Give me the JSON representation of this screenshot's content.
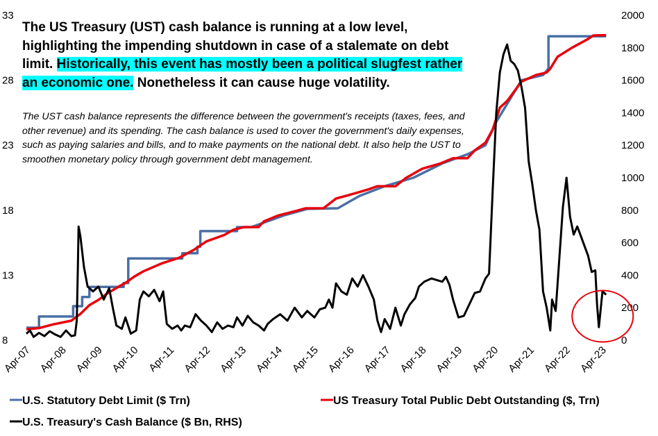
{
  "headline": {
    "part1": "The US Treasury (UST) cash balance is running at a low level, highlighting the impending shutdown in case of a stalemate on debt limit.",
    "highlight": "Historically, this event has mostly been a political slugfest rather an economic one.",
    "part2": "Nonetheless it can cause huge volatility."
  },
  "description": "The UST cash balance represents the difference between the government's receipts (taxes, fees, and other revenue) and its spending. The cash balance is used to cover the government's daily expenses, such as paying salaries and bills, and to make payments on the national debt. It also help the UST to smoothen monetary policy through government debt management.",
  "chart_data": {
    "type": "line",
    "x_tick_labels": [
      "Apr-07",
      "Apr-08",
      "Apr-09",
      "Apr-10",
      "Apr-11",
      "Apr-12",
      "Apr-13",
      "Apr-14",
      "Apr-15",
      "Apr-16",
      "Apr-17",
      "Apr-18",
      "Apr-19",
      "Apr-20",
      "Apr-21",
      "Apr-22",
      "Apr-23"
    ],
    "x_range": [
      2007.25,
      2023.5
    ],
    "y_left": {
      "range": [
        8,
        33
      ],
      "ticks": [
        8,
        13,
        18,
        23,
        28,
        33
      ],
      "unit": "$ Trn"
    },
    "y_right": {
      "range": [
        0,
        2000
      ],
      "ticks": [
        0,
        200,
        400,
        600,
        800,
        1000,
        1200,
        1400,
        1600,
        1800,
        2000
      ],
      "unit": "$ Bn"
    },
    "series": [
      {
        "name": "U.S. Statutory Debt Limit ($ Trn)",
        "color": "#4a6fa5",
        "axis": "left",
        "step": true,
        "points": [
          [
            2007.25,
            8.96
          ],
          [
            2007.6,
            8.96
          ],
          [
            2007.6,
            9.82
          ],
          [
            2008.55,
            9.82
          ],
          [
            2008.55,
            10.62
          ],
          [
            2008.8,
            10.62
          ],
          [
            2008.8,
            11.32
          ],
          [
            2009.0,
            11.32
          ],
          [
            2009.0,
            12.1
          ],
          [
            2009.95,
            12.1
          ],
          [
            2009.95,
            12.4
          ],
          [
            2010.08,
            12.4
          ],
          [
            2010.08,
            14.29
          ],
          [
            2011.58,
            14.29
          ],
          [
            2011.58,
            14.69
          ],
          [
            2012.0,
            14.69
          ],
          [
            2012.0,
            15.19
          ],
          [
            2012.08,
            15.19
          ],
          [
            2012.08,
            16.39
          ],
          [
            2013.1,
            16.39
          ],
          [
            2013.1,
            16.7
          ],
          [
            2013.5,
            16.7
          ],
          [
            2014.4,
            17.6
          ],
          [
            2015.05,
            18.1
          ],
          [
            2015.9,
            18.15
          ],
          [
            2016.5,
            19.1
          ],
          [
            2017.2,
            19.85
          ],
          [
            2018.0,
            20.5
          ],
          [
            2018.8,
            21.6
          ],
          [
            2019.2,
            22.0
          ],
          [
            2019.5,
            22.3
          ],
          [
            2020.0,
            23.0
          ],
          [
            2020.3,
            24.8
          ],
          [
            2021.0,
            28.0
          ],
          [
            2021.6,
            28.4
          ],
          [
            2021.75,
            28.9
          ],
          [
            2021.75,
            31.38
          ],
          [
            2023.35,
            31.38
          ]
        ]
      },
      {
        "name": "US Treasury Total Public Debt Outstanding ($, Trn)",
        "color": "#e8000b",
        "axis": "left",
        "points": [
          [
            2007.25,
            8.84
          ],
          [
            2007.6,
            8.93
          ],
          [
            2008.0,
            9.22
          ],
          [
            2008.5,
            9.5
          ],
          [
            2008.75,
            10.02
          ],
          [
            2009.0,
            10.7
          ],
          [
            2009.25,
            11.1
          ],
          [
            2009.5,
            11.6
          ],
          [
            2009.8,
            12.1
          ],
          [
            2010.0,
            12.4
          ],
          [
            2010.25,
            12.9
          ],
          [
            2010.5,
            13.3
          ],
          [
            2011.0,
            13.9
          ],
          [
            2011.5,
            14.35
          ],
          [
            2011.9,
            14.95
          ],
          [
            2012.25,
            15.6
          ],
          [
            2012.75,
            16.1
          ],
          [
            2013.0,
            16.5
          ],
          [
            2013.3,
            16.7
          ],
          [
            2013.7,
            16.7
          ],
          [
            2013.85,
            17.15
          ],
          [
            2014.25,
            17.6
          ],
          [
            2014.75,
            17.95
          ],
          [
            2015.0,
            18.15
          ],
          [
            2015.5,
            18.15
          ],
          [
            2015.85,
            18.9
          ],
          [
            2016.25,
            19.2
          ],
          [
            2016.75,
            19.6
          ],
          [
            2017.0,
            19.85
          ],
          [
            2017.5,
            19.85
          ],
          [
            2017.8,
            20.5
          ],
          [
            2018.25,
            21.2
          ],
          [
            2018.75,
            21.6
          ],
          [
            2019.1,
            22.0
          ],
          [
            2019.5,
            22.0
          ],
          [
            2019.7,
            22.6
          ],
          [
            2020.0,
            23.2
          ],
          [
            2020.2,
            24.2
          ],
          [
            2020.4,
            25.9
          ],
          [
            2020.6,
            26.4
          ],
          [
            2021.0,
            27.9
          ],
          [
            2021.4,
            28.4
          ],
          [
            2021.7,
            28.6
          ],
          [
            2021.8,
            28.9
          ],
          [
            2022.0,
            29.8
          ],
          [
            2022.4,
            30.5
          ],
          [
            2022.8,
            31.1
          ],
          [
            2023.0,
            31.45
          ],
          [
            2023.35,
            31.47
          ]
        ]
      },
      {
        "name": "U.S. Treasury's Cash Balance ($ Bn, RHS)",
        "color": "#000000",
        "axis": "right",
        "points": [
          [
            2007.25,
            40
          ],
          [
            2007.35,
            60
          ],
          [
            2007.45,
            20
          ],
          [
            2007.6,
            45
          ],
          [
            2007.75,
            25
          ],
          [
            2007.9,
            55
          ],
          [
            2008.05,
            35
          ],
          [
            2008.2,
            20
          ],
          [
            2008.35,
            60
          ],
          [
            2008.5,
            25
          ],
          [
            2008.6,
            30
          ],
          [
            2008.65,
            120
          ],
          [
            2008.68,
            450
          ],
          [
            2008.7,
            700
          ],
          [
            2008.75,
            640
          ],
          [
            2008.85,
            450
          ],
          [
            2008.95,
            330
          ],
          [
            2009.1,
            300
          ],
          [
            2009.25,
            330
          ],
          [
            2009.4,
            250
          ],
          [
            2009.55,
            320
          ],
          [
            2009.65,
            200
          ],
          [
            2009.75,
            90
          ],
          [
            2009.9,
            70
          ],
          [
            2010.0,
            140
          ],
          [
            2010.15,
            40
          ],
          [
            2010.3,
            60
          ],
          [
            2010.4,
            250
          ],
          [
            2010.5,
            300
          ],
          [
            2010.65,
            270
          ],
          [
            2010.8,
            310
          ],
          [
            2010.95,
            240
          ],
          [
            2011.05,
            300
          ],
          [
            2011.15,
            100
          ],
          [
            2011.3,
            70
          ],
          [
            2011.45,
            90
          ],
          [
            2011.55,
            60
          ],
          [
            2011.65,
            90
          ],
          [
            2011.8,
            80
          ],
          [
            2011.95,
            160
          ],
          [
            2012.1,
            120
          ],
          [
            2012.25,
            90
          ],
          [
            2012.4,
            50
          ],
          [
            2012.55,
            110
          ],
          [
            2012.7,
            70
          ],
          [
            2012.85,
            90
          ],
          [
            2013.0,
            80
          ],
          [
            2013.1,
            140
          ],
          [
            2013.25,
            90
          ],
          [
            2013.4,
            150
          ],
          [
            2013.55,
            110
          ],
          [
            2013.7,
            90
          ],
          [
            2013.85,
            60
          ],
          [
            2013.95,
            100
          ],
          [
            2014.1,
            130
          ],
          [
            2014.3,
            160
          ],
          [
            2014.5,
            120
          ],
          [
            2014.7,
            200
          ],
          [
            2014.9,
            140
          ],
          [
            2015.05,
            180
          ],
          [
            2015.25,
            140
          ],
          [
            2015.4,
            190
          ],
          [
            2015.55,
            200
          ],
          [
            2015.65,
            250
          ],
          [
            2015.75,
            200
          ],
          [
            2015.85,
            350
          ],
          [
            2016.0,
            300
          ],
          [
            2016.15,
            280
          ],
          [
            2016.3,
            380
          ],
          [
            2016.45,
            330
          ],
          [
            2016.6,
            400
          ],
          [
            2016.75,
            330
          ],
          [
            2016.9,
            250
          ],
          [
            2017.0,
            120
          ],
          [
            2017.1,
            50
          ],
          [
            2017.2,
            130
          ],
          [
            2017.35,
            70
          ],
          [
            2017.5,
            200
          ],
          [
            2017.65,
            90
          ],
          [
            2017.75,
            160
          ],
          [
            2017.9,
            220
          ],
          [
            2018.05,
            260
          ],
          [
            2018.15,
            330
          ],
          [
            2018.3,
            360
          ],
          [
            2018.5,
            380
          ],
          [
            2018.65,
            370
          ],
          [
            2018.8,
            360
          ],
          [
            2018.9,
            390
          ],
          [
            2019.0,
            340
          ],
          [
            2019.1,
            250
          ],
          [
            2019.25,
            140
          ],
          [
            2019.4,
            150
          ],
          [
            2019.55,
            220
          ],
          [
            2019.7,
            290
          ],
          [
            2019.85,
            300
          ],
          [
            2020.0,
            380
          ],
          [
            2020.1,
            410
          ],
          [
            2020.2,
            920
          ],
          [
            2020.3,
            1400
          ],
          [
            2020.4,
            1650
          ],
          [
            2020.5,
            1760
          ],
          [
            2020.6,
            1820
          ],
          [
            2020.7,
            1720
          ],
          [
            2020.8,
            1700
          ],
          [
            2020.9,
            1660
          ],
          [
            2021.0,
            1560
          ],
          [
            2021.1,
            1430
          ],
          [
            2021.2,
            1100
          ],
          [
            2021.3,
            960
          ],
          [
            2021.4,
            800
          ],
          [
            2021.5,
            680
          ],
          [
            2021.6,
            300
          ],
          [
            2021.7,
            200
          ],
          [
            2021.8,
            60
          ],
          [
            2021.85,
            250
          ],
          [
            2021.95,
            180
          ],
          [
            2022.05,
            500
          ],
          [
            2022.15,
            820
          ],
          [
            2022.25,
            1000
          ],
          [
            2022.35,
            760
          ],
          [
            2022.45,
            650
          ],
          [
            2022.55,
            700
          ],
          [
            2022.65,
            640
          ],
          [
            2022.75,
            580
          ],
          [
            2022.85,
            520
          ],
          [
            2022.95,
            420
          ],
          [
            2023.05,
            430
          ],
          [
            2023.1,
            220
          ],
          [
            2023.15,
            80
          ],
          [
            2023.25,
            300
          ],
          [
            2023.35,
            280
          ]
        ]
      }
    ],
    "annotation": {
      "type": "circle",
      "color": "#e8000b",
      "center_x": 2023.1,
      "center_y_right": 190
    }
  }
}
